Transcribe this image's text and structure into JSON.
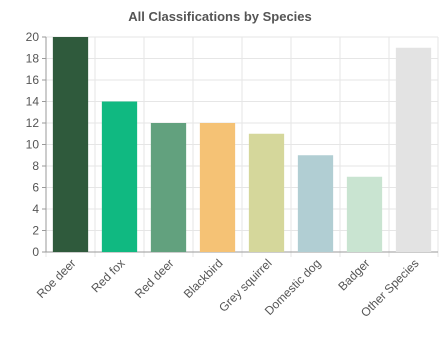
{
  "chart_data": {
    "type": "bar",
    "title": "All Classifications by Species",
    "xlabel": "",
    "ylabel": "",
    "categories": [
      "Roe deer",
      "Red fox",
      "Red deer",
      "Blackbird",
      "Grey squirrel",
      "Domestic dog",
      "Badger",
      "Other Species"
    ],
    "values": [
      20,
      14,
      12,
      12,
      11,
      9,
      7,
      19
    ],
    "colors": [
      "#2f5a3c",
      "#10b981",
      "#62a17e",
      "#f5c275",
      "#d5d79b",
      "#b1ced3",
      "#c9e4d1",
      "#e3e3e3"
    ],
    "ylim": [
      0,
      20
    ],
    "yticks": [
      0,
      2,
      4,
      6,
      8,
      10,
      12,
      14,
      16,
      18,
      20
    ],
    "grid": true,
    "legend": "none"
  }
}
